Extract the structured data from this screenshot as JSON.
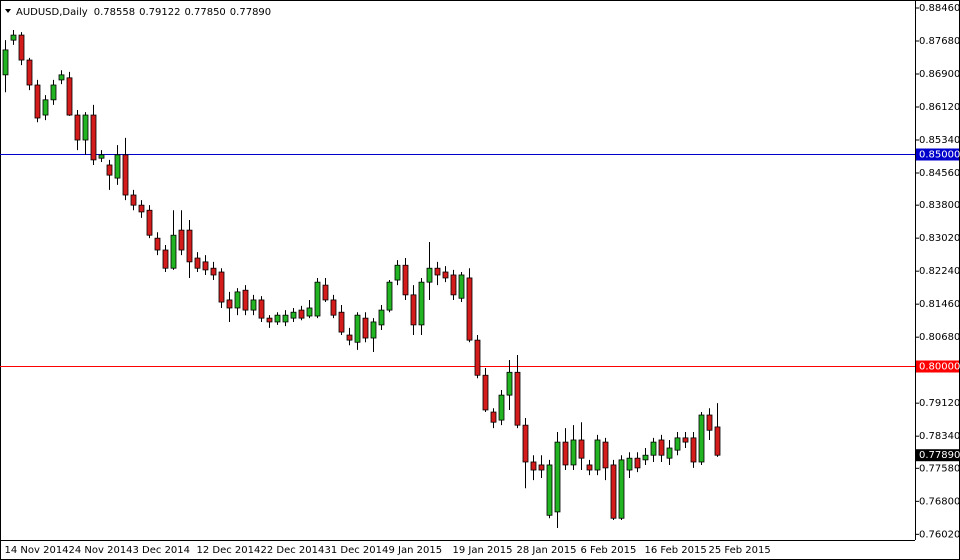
{
  "chart_data": {
    "type": "candlestick",
    "symbol": "AUDUSD,Daily",
    "ohlc_labels": [
      "0.78558",
      "0.79122",
      "0.77850",
      "0.77890"
    ],
    "last_price_label": "0.77890",
    "categories": [
      "14 Nov 2014",
      null,
      null,
      null,
      null,
      null,
      null,
      null,
      "24 Nov 2014",
      null,
      null,
      null,
      null,
      null,
      null,
      null,
      "3 Dec 2014",
      null,
      null,
      null,
      null,
      null,
      null,
      null,
      "12 Dec 2014",
      null,
      null,
      null,
      null,
      null,
      null,
      null,
      "22 Dec 2014",
      null,
      null,
      null,
      null,
      null,
      null,
      null,
      "31 Dec 2014",
      null,
      null,
      null,
      null,
      null,
      null,
      null,
      "9 Jan 2015",
      null,
      null,
      null,
      null,
      null,
      null,
      null,
      "19 Jan 2015",
      null,
      null,
      null,
      null,
      null,
      null,
      null,
      "28 Jan 2015",
      null,
      null,
      null,
      null,
      null,
      null,
      null,
      "6 Feb 2015",
      null,
      null,
      null,
      null,
      null,
      null,
      null,
      "16 Feb 2015",
      null,
      null,
      null,
      null,
      null,
      null,
      null,
      "25 Feb 2015",
      null
    ],
    "open": [
      0.8688,
      0.877,
      0.8782,
      0.8723,
      0.8664,
      0.8593,
      0.8629,
      0.8676,
      0.8681,
      0.8593,
      0.8534,
      0.8593,
      0.8491,
      0.8475,
      0.8444,
      0.8499,
      0.8404,
      0.838,
      0.8368,
      0.8302,
      0.8274,
      0.8231,
      0.8321,
      0.8321,
      0.8255,
      0.8246,
      0.8231,
      0.8222,
      0.8156,
      0.8137,
      0.8179,
      0.8132,
      0.8156,
      0.8113,
      0.8104,
      0.8104,
      0.8113,
      0.8132,
      0.8118,
      0.8118,
      0.8191,
      0.8156,
      0.8127,
      0.8073,
      0.8056,
      0.8113,
      0.8066,
      0.8097,
      0.8132,
      0.8203,
      0.8238,
      0.8168,
      0.8097,
      0.8198,
      0.8231,
      0.8222,
      0.8215,
      0.816,
      0.8208,
      0.8061,
      0.7978,
      0.7891,
      0.7872,
      0.7931,
      0.7985,
      0.786,
      0.7773,
      0.7766,
      0.7647,
      0.7655,
      0.782,
      0.7766,
      0.7825,
      0.7766,
      0.7754,
      0.782,
      0.7766,
      0.764,
      0.7754,
      0.7782,
      0.7778,
      0.7789,
      0.7825,
      0.7782,
      0.7801,
      0.783,
      0.783,
      0.7773,
      0.7884,
      0.78558
    ],
    "high": [
      0.877,
      0.8794,
      0.8789,
      0.8728,
      0.8676,
      0.864,
      0.8676,
      0.8699,
      0.8695,
      0.8605,
      0.86,
      0.8617,
      0.851,
      0.8487,
      0.8522,
      0.8539,
      0.8416,
      0.8392,
      0.838,
      0.8316,
      0.8286,
      0.8368,
      0.8368,
      0.8345,
      0.8269,
      0.8262,
      0.8246,
      0.8231,
      0.8175,
      0.8184,
      0.8191,
      0.8168,
      0.8165,
      0.812,
      0.8127,
      0.8132,
      0.8137,
      0.8142,
      0.8156,
      0.8208,
      0.8208,
      0.8168,
      0.8144,
      0.809,
      0.8127,
      0.8127,
      0.8113,
      0.8144,
      0.8203,
      0.825,
      0.8255,
      0.8191,
      0.8208,
      0.8293,
      0.8246,
      0.8236,
      0.8227,
      0.8222,
      0.8231,
      0.8073,
      0.7995,
      0.79,
      0.7943,
      0.8014,
      0.8026,
      0.7877,
      0.7789,
      0.7789,
      0.7778,
      0.7844,
      0.7853,
      0.786,
      0.7867,
      0.7778,
      0.7837,
      0.783,
      0.7778,
      0.7789,
      0.7796,
      0.7796,
      0.7806,
      0.783,
      0.7837,
      0.7825,
      0.7844,
      0.7844,
      0.7844,
      0.7891,
      0.79,
      0.79122
    ],
    "low": [
      0.8647,
      0.8759,
      0.8711,
      0.8652,
      0.8576,
      0.8581,
      0.8617,
      0.8666,
      0.8591,
      0.851,
      0.8499,
      0.8475,
      0.8482,
      0.8416,
      0.8428,
      0.8392,
      0.8368,
      0.835,
      0.8302,
      0.8262,
      0.8222,
      0.8227,
      0.8262,
      0.8208,
      0.8222,
      0.8215,
      0.8203,
      0.8137,
      0.8104,
      0.812,
      0.812,
      0.812,
      0.8104,
      0.809,
      0.8097,
      0.8094,
      0.8104,
      0.8108,
      0.8113,
      0.8113,
      0.8151,
      0.8113,
      0.8073,
      0.8049,
      0.8038,
      0.8056,
      0.8033,
      0.8085,
      0.8127,
      0.8191,
      0.8156,
      0.8073,
      0.8073,
      0.8156,
      0.8191,
      0.8198,
      0.8156,
      0.8151,
      0.8056,
      0.7971,
      0.7891,
      0.7853,
      0.786,
      0.7896,
      0.7853,
      0.7711,
      0.773,
      0.7735,
      0.764,
      0.7617,
      0.7754,
      0.7754,
      0.7754,
      0.7742,
      0.7742,
      0.773,
      0.7636,
      0.7636,
      0.7735,
      0.7749,
      0.7766,
      0.7773,
      0.7773,
      0.7766,
      0.7789,
      0.7806,
      0.7759,
      0.7766,
      0.7825,
      0.7785
    ],
    "close": [
      0.8747,
      0.8782,
      0.8723,
      0.8664,
      0.8586,
      0.8629,
      0.8664,
      0.8688,
      0.8593,
      0.8534,
      0.8593,
      0.8487,
      0.8499,
      0.8451,
      0.8499,
      0.8404,
      0.838,
      0.8364,
      0.8309,
      0.8274,
      0.8231,
      0.8309,
      0.8274,
      0.8246,
      0.8231,
      0.8227,
      0.8215,
      0.8151,
      0.8137,
      0.8175,
      0.8132,
      0.8156,
      0.8113,
      0.8104,
      0.812,
      0.812,
      0.8127,
      0.8113,
      0.8137,
      0.8198,
      0.8156,
      0.812,
      0.808,
      0.8061,
      0.812,
      0.8066,
      0.8104,
      0.8132,
      0.8198,
      0.8238,
      0.8168,
      0.8097,
      0.8198,
      0.8231,
      0.8215,
      0.8208,
      0.8168,
      0.8215,
      0.8061,
      0.7978,
      0.7896,
      0.7867,
      0.7931,
      0.7985,
      0.786,
      0.7773,
      0.7754,
      0.7754,
      0.7766,
      0.782,
      0.7766,
      0.7825,
      0.7782,
      0.7754,
      0.7825,
      0.7759,
      0.764,
      0.7778,
      0.7782,
      0.7759,
      0.7789,
      0.782,
      0.7789,
      0.7806,
      0.783,
      0.782,
      0.7773,
      0.7884,
      0.7848,
      0.7789
    ],
    "bull_color": "#22b422",
    "bear_color": "#d41c1c",
    "ylim": [
      0.75886,
      0.88602
    ],
    "yticks": [
      {
        "value": 0.8846,
        "label": "0.88460"
      },
      {
        "value": 0.8768,
        "label": "0.87680"
      },
      {
        "value": 0.869,
        "label": "0.86900"
      },
      {
        "value": 0.8612,
        "label": "0.86120"
      },
      {
        "value": 0.8534,
        "label": "0.85340"
      },
      {
        "value": 0.8456,
        "label": "0.84560"
      },
      {
        "value": 0.838,
        "label": "0.83800"
      },
      {
        "value": 0.8302,
        "label": "0.83020"
      },
      {
        "value": 0.8224,
        "label": "0.82240"
      },
      {
        "value": 0.8146,
        "label": "0.81460"
      },
      {
        "value": 0.8068,
        "label": "0.80680"
      },
      {
        "value": 0.7912,
        "label": "0.79120"
      },
      {
        "value": 0.7834,
        "label": "0.78340"
      },
      {
        "value": 0.7758,
        "label": "0.77580"
      },
      {
        "value": 0.768,
        "label": "0.76800"
      },
      {
        "value": 0.7602,
        "label": "0.76020"
      }
    ],
    "levels": [
      {
        "value": 0.85,
        "label": "0.85000",
        "color": "#0000cc"
      },
      {
        "value": 0.8,
        "label": "0.80000",
        "color": "#ff0000"
      }
    ],
    "grid": false
  }
}
